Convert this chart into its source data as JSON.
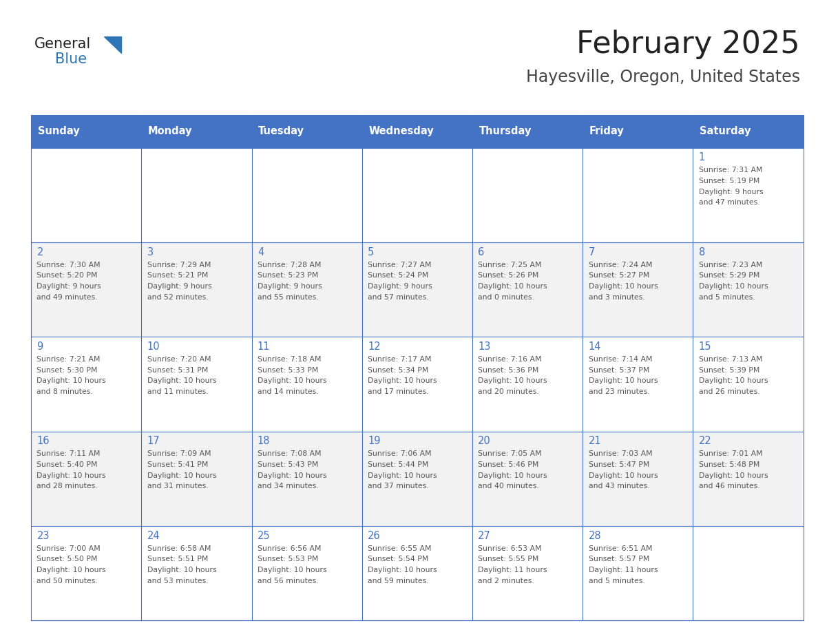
{
  "title": "February 2025",
  "subtitle": "Hayesville, Oregon, United States",
  "days_of_week": [
    "Sunday",
    "Monday",
    "Tuesday",
    "Wednesday",
    "Thursday",
    "Friday",
    "Saturday"
  ],
  "header_bg": "#4472C4",
  "header_text": "#FFFFFF",
  "cell_border": "#4472C4",
  "day_num_color": "#4472C4",
  "text_color": "#555555",
  "alt_row_bg": "#F2F2F2",
  "white_bg": "#FFFFFF",
  "title_color": "#222222",
  "subtitle_color": "#444444",
  "logo_general_color": "#222222",
  "logo_blue_color": "#2E75B6",
  "calendar_data": [
    {
      "day": 1,
      "row": 0,
      "col": 6,
      "sunrise": "7:31 AM",
      "sunset": "5:19 PM",
      "daylight_line1": "9 hours",
      "daylight_line2": "and 47 minutes."
    },
    {
      "day": 2,
      "row": 1,
      "col": 0,
      "sunrise": "7:30 AM",
      "sunset": "5:20 PM",
      "daylight_line1": "9 hours",
      "daylight_line2": "and 49 minutes."
    },
    {
      "day": 3,
      "row": 1,
      "col": 1,
      "sunrise": "7:29 AM",
      "sunset": "5:21 PM",
      "daylight_line1": "9 hours",
      "daylight_line2": "and 52 minutes."
    },
    {
      "day": 4,
      "row": 1,
      "col": 2,
      "sunrise": "7:28 AM",
      "sunset": "5:23 PM",
      "daylight_line1": "9 hours",
      "daylight_line2": "and 55 minutes."
    },
    {
      "day": 5,
      "row": 1,
      "col": 3,
      "sunrise": "7:27 AM",
      "sunset": "5:24 PM",
      "daylight_line1": "9 hours",
      "daylight_line2": "and 57 minutes."
    },
    {
      "day": 6,
      "row": 1,
      "col": 4,
      "sunrise": "7:25 AM",
      "sunset": "5:26 PM",
      "daylight_line1": "10 hours",
      "daylight_line2": "and 0 minutes."
    },
    {
      "day": 7,
      "row": 1,
      "col": 5,
      "sunrise": "7:24 AM",
      "sunset": "5:27 PM",
      "daylight_line1": "10 hours",
      "daylight_line2": "and 3 minutes."
    },
    {
      "day": 8,
      "row": 1,
      "col": 6,
      "sunrise": "7:23 AM",
      "sunset": "5:29 PM",
      "daylight_line1": "10 hours",
      "daylight_line2": "and 5 minutes."
    },
    {
      "day": 9,
      "row": 2,
      "col": 0,
      "sunrise": "7:21 AM",
      "sunset": "5:30 PM",
      "daylight_line1": "10 hours",
      "daylight_line2": "and 8 minutes."
    },
    {
      "day": 10,
      "row": 2,
      "col": 1,
      "sunrise": "7:20 AM",
      "sunset": "5:31 PM",
      "daylight_line1": "10 hours",
      "daylight_line2": "and 11 minutes."
    },
    {
      "day": 11,
      "row": 2,
      "col": 2,
      "sunrise": "7:18 AM",
      "sunset": "5:33 PM",
      "daylight_line1": "10 hours",
      "daylight_line2": "and 14 minutes."
    },
    {
      "day": 12,
      "row": 2,
      "col": 3,
      "sunrise": "7:17 AM",
      "sunset": "5:34 PM",
      "daylight_line1": "10 hours",
      "daylight_line2": "and 17 minutes."
    },
    {
      "day": 13,
      "row": 2,
      "col": 4,
      "sunrise": "7:16 AM",
      "sunset": "5:36 PM",
      "daylight_line1": "10 hours",
      "daylight_line2": "and 20 minutes."
    },
    {
      "day": 14,
      "row": 2,
      "col": 5,
      "sunrise": "7:14 AM",
      "sunset": "5:37 PM",
      "daylight_line1": "10 hours",
      "daylight_line2": "and 23 minutes."
    },
    {
      "day": 15,
      "row": 2,
      "col": 6,
      "sunrise": "7:13 AM",
      "sunset": "5:39 PM",
      "daylight_line1": "10 hours",
      "daylight_line2": "and 26 minutes."
    },
    {
      "day": 16,
      "row": 3,
      "col": 0,
      "sunrise": "7:11 AM",
      "sunset": "5:40 PM",
      "daylight_line1": "10 hours",
      "daylight_line2": "and 28 minutes."
    },
    {
      "day": 17,
      "row": 3,
      "col": 1,
      "sunrise": "7:09 AM",
      "sunset": "5:41 PM",
      "daylight_line1": "10 hours",
      "daylight_line2": "and 31 minutes."
    },
    {
      "day": 18,
      "row": 3,
      "col": 2,
      "sunrise": "7:08 AM",
      "sunset": "5:43 PM",
      "daylight_line1": "10 hours",
      "daylight_line2": "and 34 minutes."
    },
    {
      "day": 19,
      "row": 3,
      "col": 3,
      "sunrise": "7:06 AM",
      "sunset": "5:44 PM",
      "daylight_line1": "10 hours",
      "daylight_line2": "and 37 minutes."
    },
    {
      "day": 20,
      "row": 3,
      "col": 4,
      "sunrise": "7:05 AM",
      "sunset": "5:46 PM",
      "daylight_line1": "10 hours",
      "daylight_line2": "and 40 minutes."
    },
    {
      "day": 21,
      "row": 3,
      "col": 5,
      "sunrise": "7:03 AM",
      "sunset": "5:47 PM",
      "daylight_line1": "10 hours",
      "daylight_line2": "and 43 minutes."
    },
    {
      "day": 22,
      "row": 3,
      "col": 6,
      "sunrise": "7:01 AM",
      "sunset": "5:48 PM",
      "daylight_line1": "10 hours",
      "daylight_line2": "and 46 minutes."
    },
    {
      "day": 23,
      "row": 4,
      "col": 0,
      "sunrise": "7:00 AM",
      "sunset": "5:50 PM",
      "daylight_line1": "10 hours",
      "daylight_line2": "and 50 minutes."
    },
    {
      "day": 24,
      "row": 4,
      "col": 1,
      "sunrise": "6:58 AM",
      "sunset": "5:51 PM",
      "daylight_line1": "10 hours",
      "daylight_line2": "and 53 minutes."
    },
    {
      "day": 25,
      "row": 4,
      "col": 2,
      "sunrise": "6:56 AM",
      "sunset": "5:53 PM",
      "daylight_line1": "10 hours",
      "daylight_line2": "and 56 minutes."
    },
    {
      "day": 26,
      "row": 4,
      "col": 3,
      "sunrise": "6:55 AM",
      "sunset": "5:54 PM",
      "daylight_line1": "10 hours",
      "daylight_line2": "and 59 minutes."
    },
    {
      "day": 27,
      "row": 4,
      "col": 4,
      "sunrise": "6:53 AM",
      "sunset": "5:55 PM",
      "daylight_line1": "11 hours",
      "daylight_line2": "and 2 minutes."
    },
    {
      "day": 28,
      "row": 4,
      "col": 5,
      "sunrise": "6:51 AM",
      "sunset": "5:57 PM",
      "daylight_line1": "11 hours",
      "daylight_line2": "and 5 minutes."
    }
  ]
}
